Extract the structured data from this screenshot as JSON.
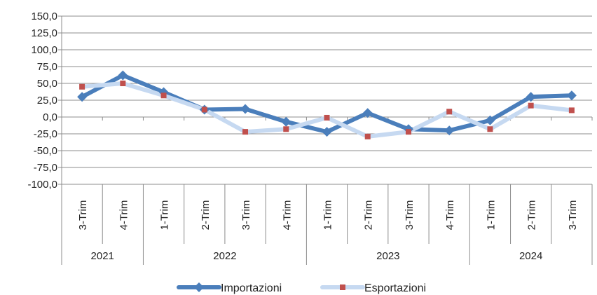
{
  "chart_data": {
    "type": "line",
    "categories": [
      "3-Trim",
      "4-Trim",
      "1-Trim",
      "2-Trim",
      "3-Trim",
      "4-Trim",
      "1-Trim",
      "2-Trim",
      "3-Trim",
      "4-Trim",
      "1-Trim",
      "2-Trim",
      "3-Trim"
    ],
    "year_groups": [
      {
        "label": "2021",
        "count": 2
      },
      {
        "label": "2022",
        "count": 4
      },
      {
        "label": "2023",
        "count": 4
      },
      {
        "label": "2024",
        "count": 3
      }
    ],
    "ylim": [
      -100,
      150
    ],
    "yticks": [
      150,
      125,
      100,
      75,
      50,
      25,
      0,
      -25,
      -50,
      -75,
      -100
    ],
    "ytick_labels": [
      "150,0",
      "125,0",
      "100,0",
      "75,0",
      "50,0",
      "25,0",
      "0,0",
      "-25,0",
      "-50,0",
      "-75,0",
      "-100,0"
    ],
    "grid": true,
    "legend_position": "bottom",
    "series": [
      {
        "name": "Importazioni",
        "color": "#4a7ebb",
        "marker": "diamond",
        "values": [
          30,
          62,
          37,
          11,
          12,
          -7,
          -22,
          6,
          -18,
          -20,
          -5,
          30,
          32
        ]
      },
      {
        "name": "Esportazioni",
        "color": "#c6d9f1",
        "marker_color": "#c0504d",
        "marker": "square",
        "values": [
          45,
          50,
          32,
          11,
          -22,
          -18,
          -1,
          -29,
          -22,
          8,
          -18,
          17,
          10
        ]
      }
    ]
  }
}
